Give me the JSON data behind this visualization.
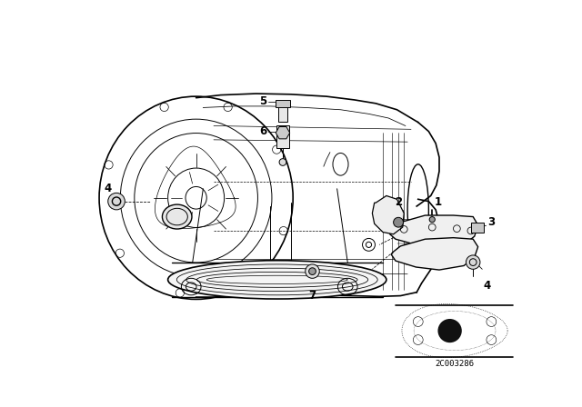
{
  "bg_color": "#ffffff",
  "fig_width": 6.4,
  "fig_height": 4.48,
  "dpi": 100,
  "diagram_code": "2C003286",
  "line_color": "#000000",
  "line_width": 0.7,
  "label_fontsize": 8.5
}
